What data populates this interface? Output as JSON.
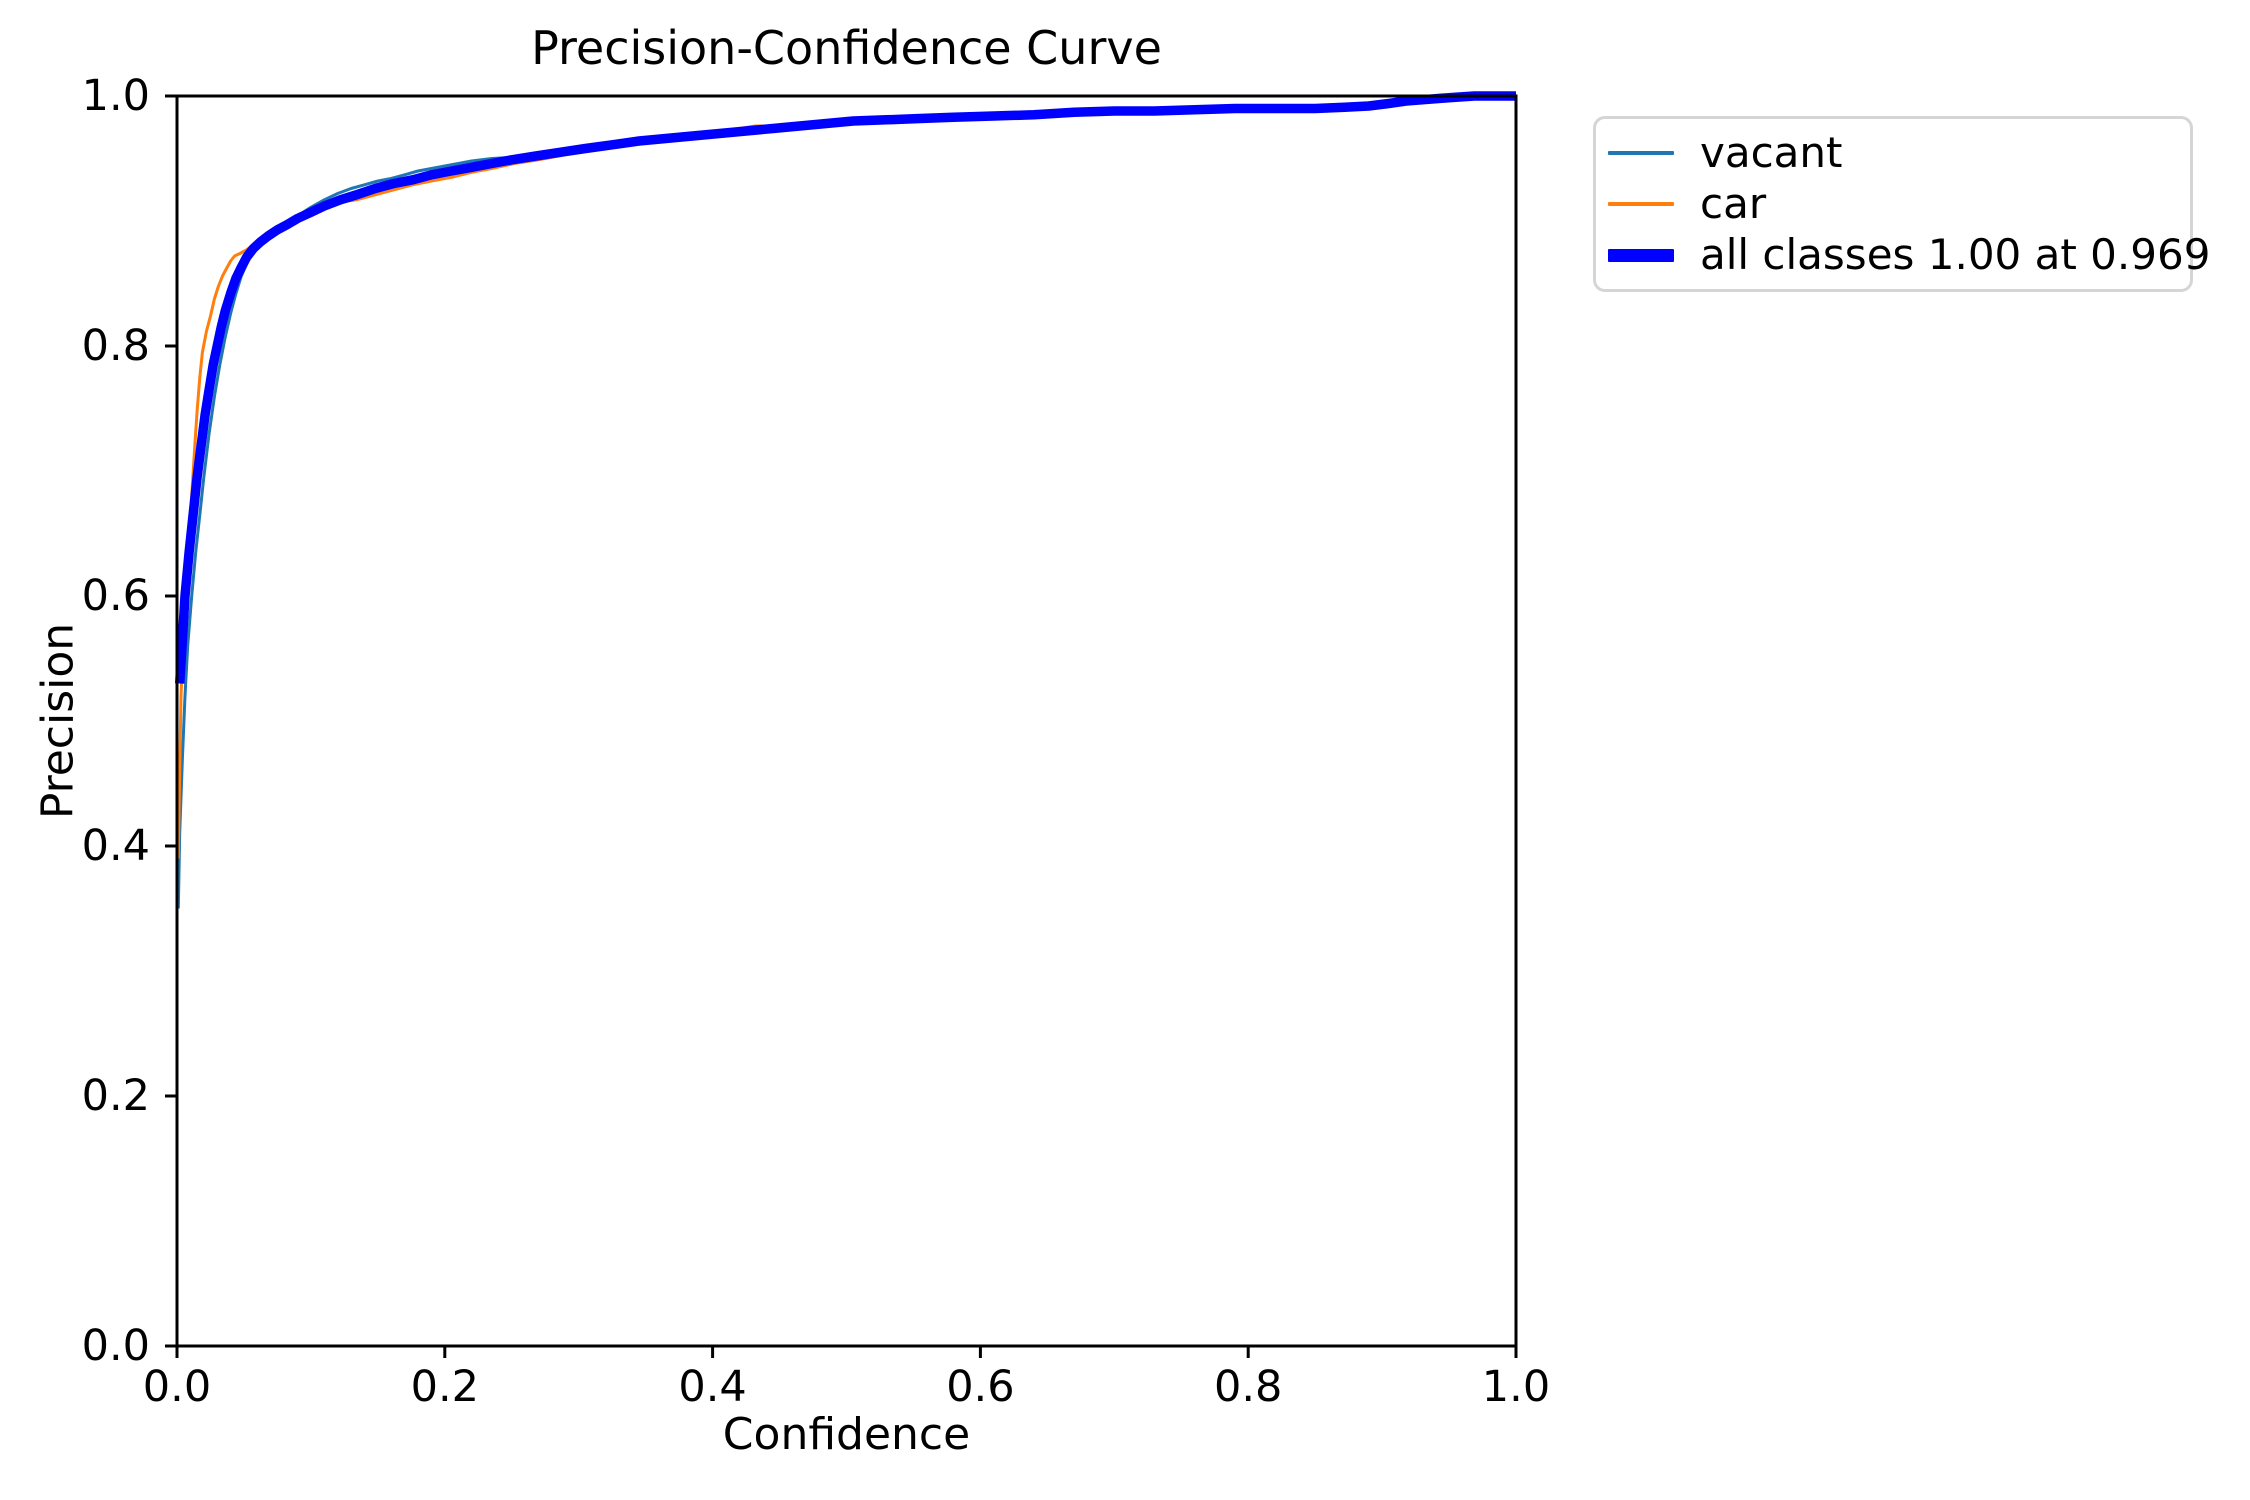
{
  "figure": {
    "title": "Precision-Confidence Curve",
    "xlabel": "Confidence",
    "ylabel": "Precision"
  },
  "chart_data": {
    "type": "line",
    "title": "Precision-Confidence Curve",
    "xlabel": "Confidence",
    "ylabel": "Precision",
    "xlim": [
      0.0,
      1.0
    ],
    "ylim": [
      0.0,
      1.0
    ],
    "grid": false,
    "legend_position": "outside upper right",
    "x_tick_values": [
      0.0,
      0.2,
      0.4,
      0.6,
      0.8,
      1.0
    ],
    "x_tick_labels": [
      "0.0",
      "0.2",
      "0.4",
      "0.6",
      "0.8",
      "1.0"
    ],
    "y_tick_values": [
      0.0,
      0.2,
      0.4,
      0.6,
      0.8,
      1.0
    ],
    "y_tick_labels": [
      "0.0",
      "0.2",
      "0.4",
      "0.6",
      "0.8",
      "1.0"
    ],
    "annotation": "all classes reach precision 1.00 at confidence 0.969",
    "series": [
      {
        "name": "vacant",
        "color": "#1f77b4",
        "line_width": 3,
        "legend_swatch_height": 4,
        "points": [
          [
            0.001,
            0.35
          ],
          [
            0.002,
            0.41
          ],
          [
            0.004,
            0.47
          ],
          [
            0.006,
            0.52
          ],
          [
            0.008,
            0.56
          ],
          [
            0.011,
            0.6
          ],
          [
            0.014,
            0.635
          ],
          [
            0.017,
            0.665
          ],
          [
            0.02,
            0.695
          ],
          [
            0.024,
            0.73
          ],
          [
            0.028,
            0.76
          ],
          [
            0.032,
            0.785
          ],
          [
            0.036,
            0.807
          ],
          [
            0.04,
            0.826
          ],
          [
            0.044,
            0.842
          ],
          [
            0.048,
            0.856
          ],
          [
            0.053,
            0.868
          ],
          [
            0.058,
            0.877
          ],
          [
            0.065,
            0.886
          ],
          [
            0.072,
            0.892
          ],
          [
            0.08,
            0.898
          ],
          [
            0.09,
            0.904
          ],
          [
            0.1,
            0.911
          ],
          [
            0.11,
            0.917
          ],
          [
            0.12,
            0.922
          ],
          [
            0.13,
            0.926
          ],
          [
            0.14,
            0.929
          ],
          [
            0.15,
            0.932
          ],
          [
            0.16,
            0.934
          ],
          [
            0.17,
            0.937
          ],
          [
            0.18,
            0.94
          ],
          [
            0.19,
            0.942
          ],
          [
            0.2,
            0.944
          ],
          [
            0.21,
            0.946
          ],
          [
            0.22,
            0.948
          ],
          [
            0.235,
            0.95
          ],
          [
            0.25,
            0.951
          ],
          [
            0.27,
            0.954
          ],
          [
            0.29,
            0.957
          ],
          [
            0.31,
            0.96
          ],
          [
            0.33,
            0.963
          ],
          [
            0.35,
            0.965
          ],
          [
            0.37,
            0.967
          ],
          [
            0.39,
            0.969
          ],
          [
            0.41,
            0.97
          ],
          [
            0.43,
            0.972
          ],
          [
            0.45,
            0.974
          ],
          [
            0.47,
            0.977
          ],
          [
            0.49,
            0.979
          ],
          [
            0.51,
            0.98
          ],
          [
            0.54,
            0.982
          ],
          [
            0.57,
            0.983
          ],
          [
            0.6,
            0.984
          ],
          [
            0.63,
            0.985
          ],
          [
            0.66,
            0.986
          ],
          [
            0.69,
            0.988
          ],
          [
            0.72,
            0.988
          ],
          [
            0.75,
            0.989
          ],
          [
            0.78,
            0.99
          ],
          [
            0.81,
            0.99
          ],
          [
            0.84,
            0.99
          ],
          [
            0.87,
            0.991
          ],
          [
            0.89,
            0.992
          ],
          [
            0.91,
            0.995
          ],
          [
            0.93,
            0.997
          ],
          [
            0.945,
            0.998
          ],
          [
            0.96,
            0.999
          ],
          [
            0.969,
            1.0
          ],
          [
            1.0,
            1.0
          ]
        ]
      },
      {
        "name": "car",
        "color": "#ff7f0e",
        "line_width": 3,
        "legend_swatch_height": 4,
        "points": [
          [
            0.001,
            0.39
          ],
          [
            0.002,
            0.46
          ],
          [
            0.003,
            0.52
          ],
          [
            0.005,
            0.575
          ],
          [
            0.007,
            0.615
          ],
          [
            0.009,
            0.648
          ],
          [
            0.011,
            0.68
          ],
          [
            0.013,
            0.715
          ],
          [
            0.015,
            0.748
          ],
          [
            0.017,
            0.775
          ],
          [
            0.019,
            0.795
          ],
          [
            0.022,
            0.812
          ],
          [
            0.025,
            0.824
          ],
          [
            0.028,
            0.838
          ],
          [
            0.031,
            0.848
          ],
          [
            0.034,
            0.856
          ],
          [
            0.037,
            0.862
          ],
          [
            0.04,
            0.868
          ],
          [
            0.043,
            0.872
          ],
          [
            0.047,
            0.874
          ],
          [
            0.052,
            0.877
          ],
          [
            0.057,
            0.881
          ],
          [
            0.063,
            0.886
          ],
          [
            0.07,
            0.891
          ],
          [
            0.078,
            0.896
          ],
          [
            0.088,
            0.901
          ],
          [
            0.098,
            0.906
          ],
          [
            0.11,
            0.911
          ],
          [
            0.122,
            0.915
          ],
          [
            0.134,
            0.917
          ],
          [
            0.148,
            0.921
          ],
          [
            0.162,
            0.925
          ],
          [
            0.176,
            0.929
          ],
          [
            0.19,
            0.932
          ],
          [
            0.205,
            0.935
          ],
          [
            0.22,
            0.939
          ],
          [
            0.235,
            0.942
          ],
          [
            0.252,
            0.946
          ],
          [
            0.27,
            0.949
          ],
          [
            0.29,
            0.953
          ],
          [
            0.31,
            0.957
          ],
          [
            0.33,
            0.96
          ],
          [
            0.35,
            0.963
          ],
          [
            0.37,
            0.966
          ],
          [
            0.39,
            0.968
          ],
          [
            0.408,
            0.971
          ],
          [
            0.42,
            0.974
          ],
          [
            0.432,
            0.976
          ],
          [
            0.445,
            0.976
          ],
          [
            0.46,
            0.976
          ],
          [
            0.48,
            0.978
          ],
          [
            0.5,
            0.98
          ],
          [
            0.52,
            0.981
          ],
          [
            0.545,
            0.982
          ],
          [
            0.57,
            0.982
          ],
          [
            0.595,
            0.983
          ],
          [
            0.62,
            0.985
          ],
          [
            0.65,
            0.986
          ],
          [
            0.675,
            0.988
          ],
          [
            0.69,
            0.99
          ],
          [
            0.71,
            0.99
          ],
          [
            0.74,
            0.989
          ],
          [
            0.77,
            0.99
          ],
          [
            0.8,
            0.99
          ],
          [
            0.83,
            0.99
          ],
          [
            0.86,
            0.99
          ],
          [
            0.878,
            0.991
          ],
          [
            0.893,
            0.992
          ],
          [
            0.903,
            0.992
          ],
          [
            0.913,
            0.993
          ],
          [
            0.922,
            0.995
          ],
          [
            0.935,
            0.997
          ],
          [
            0.95,
            0.999
          ],
          [
            0.969,
            1.0
          ],
          [
            1.0,
            1.0
          ]
        ]
      },
      {
        "name": "all classes 1.00 at 0.969",
        "color": "#0000ff",
        "line_width": 9.5,
        "legend_swatch_height": 13,
        "points": [
          [
            0.002,
            0.53
          ],
          [
            0.004,
            0.565
          ],
          [
            0.006,
            0.6
          ],
          [
            0.009,
            0.635
          ],
          [
            0.012,
            0.665
          ],
          [
            0.015,
            0.695
          ],
          [
            0.018,
            0.72
          ],
          [
            0.021,
            0.745
          ],
          [
            0.024,
            0.765
          ],
          [
            0.027,
            0.785
          ],
          [
            0.03,
            0.8
          ],
          [
            0.033,
            0.815
          ],
          [
            0.036,
            0.828
          ],
          [
            0.04,
            0.842
          ],
          [
            0.044,
            0.854
          ],
          [
            0.048,
            0.863
          ],
          [
            0.052,
            0.871
          ],
          [
            0.057,
            0.878
          ],
          [
            0.062,
            0.883
          ],
          [
            0.068,
            0.888
          ],
          [
            0.075,
            0.893
          ],
          [
            0.082,
            0.897
          ],
          [
            0.09,
            0.902
          ],
          [
            0.1,
            0.907
          ],
          [
            0.11,
            0.912
          ],
          [
            0.122,
            0.917
          ],
          [
            0.134,
            0.921
          ],
          [
            0.148,
            0.926
          ],
          [
            0.162,
            0.93
          ],
          [
            0.176,
            0.933
          ],
          [
            0.19,
            0.937
          ],
          [
            0.205,
            0.94
          ],
          [
            0.22,
            0.943
          ],
          [
            0.235,
            0.946
          ],
          [
            0.25,
            0.949
          ],
          [
            0.268,
            0.952
          ],
          [
            0.286,
            0.955
          ],
          [
            0.305,
            0.958
          ],
          [
            0.325,
            0.961
          ],
          [
            0.345,
            0.964
          ],
          [
            0.365,
            0.966
          ],
          [
            0.385,
            0.968
          ],
          [
            0.405,
            0.97
          ],
          [
            0.425,
            0.972
          ],
          [
            0.445,
            0.974
          ],
          [
            0.465,
            0.976
          ],
          [
            0.485,
            0.978
          ],
          [
            0.505,
            0.98
          ],
          [
            0.53,
            0.981
          ],
          [
            0.555,
            0.982
          ],
          [
            0.58,
            0.983
          ],
          [
            0.61,
            0.984
          ],
          [
            0.64,
            0.985
          ],
          [
            0.67,
            0.987
          ],
          [
            0.7,
            0.988
          ],
          [
            0.73,
            0.988
          ],
          [
            0.76,
            0.989
          ],
          [
            0.79,
            0.99
          ],
          [
            0.82,
            0.99
          ],
          [
            0.85,
            0.99
          ],
          [
            0.872,
            0.991
          ],
          [
            0.89,
            0.992
          ],
          [
            0.905,
            0.994
          ],
          [
            0.918,
            0.996
          ],
          [
            0.93,
            0.997
          ],
          [
            0.942,
            0.998
          ],
          [
            0.955,
            0.999
          ],
          [
            0.969,
            1.0
          ],
          [
            1.0,
            1.0
          ]
        ]
      }
    ]
  }
}
